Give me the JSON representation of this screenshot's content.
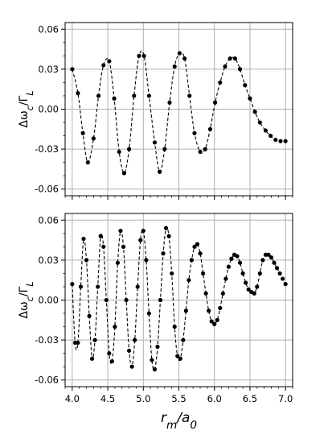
{
  "chart_data": [
    {
      "type": "line",
      "ylabel": "Δω_c/Γ_L",
      "xlabel": "",
      "xlim": [
        3.9,
        7.1
      ],
      "ylim": [
        -0.065,
        0.065
      ],
      "yticks": [
        0.06,
        0.03,
        0.0,
        -0.03,
        -0.06
      ],
      "ytick_labels": [
        "0.06",
        "0.03",
        "0.00",
        "-0.03",
        "-0.06"
      ],
      "xticks": [
        4.0,
        4.5,
        5.0,
        5.5,
        6.0,
        6.5,
        7.0
      ],
      "xtick_labels": [
        "",
        "",
        "",
        "",
        "",
        "",
        ""
      ],
      "grid": true,
      "series": [
        {
          "style": "dashed-line-with-dots",
          "x": [
            4.0,
            4.08,
            4.15,
            4.22,
            4.3,
            4.37,
            4.44,
            4.52,
            4.59,
            4.66,
            4.73,
            4.8,
            4.87,
            4.94,
            5.01,
            5.08,
            5.16,
            5.23,
            5.3,
            5.37,
            5.44,
            5.51,
            5.58,
            5.65,
            5.72,
            5.8,
            5.87,
            5.94,
            6.01,
            6.08,
            6.15,
            6.22,
            6.29,
            6.36,
            6.43,
            6.5,
            6.57,
            6.64,
            6.72,
            6.79,
            6.86,
            6.93,
            7.0
          ],
          "y": [
            0.03,
            0.012,
            -0.018,
            -0.04,
            -0.022,
            0.01,
            0.033,
            0.036,
            0.008,
            -0.032,
            -0.048,
            -0.03,
            0.01,
            0.04,
            0.04,
            0.01,
            -0.025,
            -0.047,
            -0.03,
            0.005,
            0.032,
            0.042,
            0.038,
            0.01,
            -0.018,
            -0.032,
            -0.03,
            -0.015,
            0.005,
            0.02,
            0.032,
            0.038,
            0.038,
            0.03,
            0.018,
            0.008,
            -0.002,
            -0.01,
            -0.016,
            -0.02,
            -0.023,
            -0.024,
            -0.024
          ]
        }
      ]
    },
    {
      "type": "line",
      "ylabel": "Δω_c/Γ_L",
      "xlabel": "r_m/a_0",
      "xlim": [
        3.9,
        7.1
      ],
      "ylim": [
        -0.065,
        0.065
      ],
      "yticks": [
        0.06,
        0.03,
        0.0,
        -0.03,
        -0.06
      ],
      "ytick_labels": [
        "0.06",
        "0.03",
        "0.00",
        "-0.03",
        "-0.06"
      ],
      "xticks": [
        4.0,
        4.5,
        5.0,
        5.5,
        6.0,
        6.5,
        7.0
      ],
      "xtick_labels": [
        "4.0",
        "4.5",
        "5.0",
        "5.5",
        "6.0",
        "6.5",
        "7.0"
      ],
      "grid": true,
      "series": [
        {
          "style": "dashed-line-with-dots",
          "x": [
            4.0,
            4.04,
            4.08,
            4.12,
            4.16,
            4.2,
            4.24,
            4.28,
            4.32,
            4.36,
            4.4,
            4.44,
            4.48,
            4.52,
            4.56,
            4.6,
            4.64,
            4.68,
            4.72,
            4.76,
            4.8,
            4.84,
            4.88,
            4.92,
            4.96,
            5.0,
            5.04,
            5.08,
            5.12,
            5.16,
            5.2,
            5.24,
            5.28,
            5.32,
            5.36,
            5.4,
            5.44,
            5.48,
            5.52,
            5.56,
            5.6,
            5.64,
            5.68,
            5.72,
            5.76,
            5.8,
            5.84,
            5.88,
            5.92,
            5.96,
            6.0,
            6.04,
            6.08,
            6.12,
            6.16,
            6.2,
            6.24,
            6.28,
            6.32,
            6.36,
            6.4,
            6.44,
            6.48,
            6.52,
            6.56,
            6.6,
            6.64,
            6.68,
            6.72,
            6.76,
            6.8,
            6.84,
            6.88,
            6.92,
            6.96,
            7.0
          ],
          "y": [
            0.012,
            -0.032,
            -0.032,
            0.01,
            0.046,
            0.03,
            -0.012,
            -0.044,
            -0.03,
            0.01,
            0.048,
            0.04,
            0.0,
            -0.04,
            -0.046,
            -0.02,
            0.028,
            0.052,
            0.04,
            0.0,
            -0.038,
            -0.05,
            -0.03,
            0.01,
            0.045,
            0.052,
            0.03,
            -0.01,
            -0.045,
            -0.052,
            -0.035,
            0.0,
            0.035,
            0.054,
            0.048,
            0.02,
            -0.02,
            -0.042,
            -0.044,
            -0.03,
            -0.008,
            0.015,
            0.03,
            0.04,
            0.042,
            0.035,
            0.02,
            0.005,
            -0.008,
            -0.016,
            -0.018,
            -0.015,
            -0.006,
            0.005,
            0.016,
            0.025,
            0.031,
            0.034,
            0.033,
            0.028,
            0.02,
            0.013,
            0.008,
            0.006,
            0.005,
            0.01,
            0.02,
            0.03,
            0.034,
            0.034,
            0.032,
            0.028,
            0.024,
            0.02,
            0.016,
            0.012
          ]
        }
      ]
    }
  ]
}
